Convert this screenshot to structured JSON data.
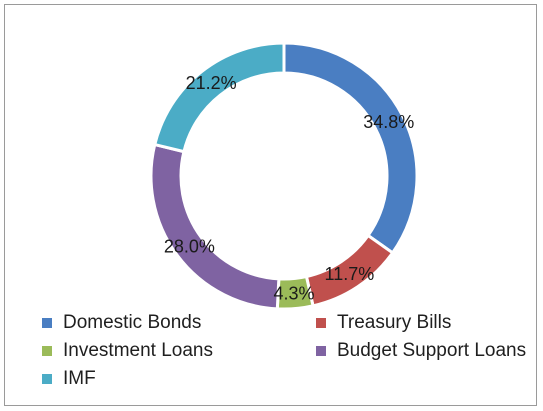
{
  "chart_data": {
    "type": "pie",
    "donut": true,
    "title": "",
    "legend_position": "bottom",
    "slices": [
      {
        "name": "Domestic Bonds",
        "value": 34.8,
        "label": "34.8%",
        "color": "#4a7ec2"
      },
      {
        "name": "Treasury Bills",
        "value": 11.7,
        "label": "11.7%",
        "color": "#c0504d"
      },
      {
        "name": "Investment Loans",
        "value": 4.3,
        "label": "4.3%",
        "color": "#9bbb59"
      },
      {
        "name": "Budget Support Loans",
        "value": 28.0,
        "label": "28.0%",
        "color": "#7f63a2"
      },
      {
        "name": "IMF",
        "value": 21.2,
        "label": "21.2%",
        "color": "#4bacc6"
      }
    ]
  }
}
